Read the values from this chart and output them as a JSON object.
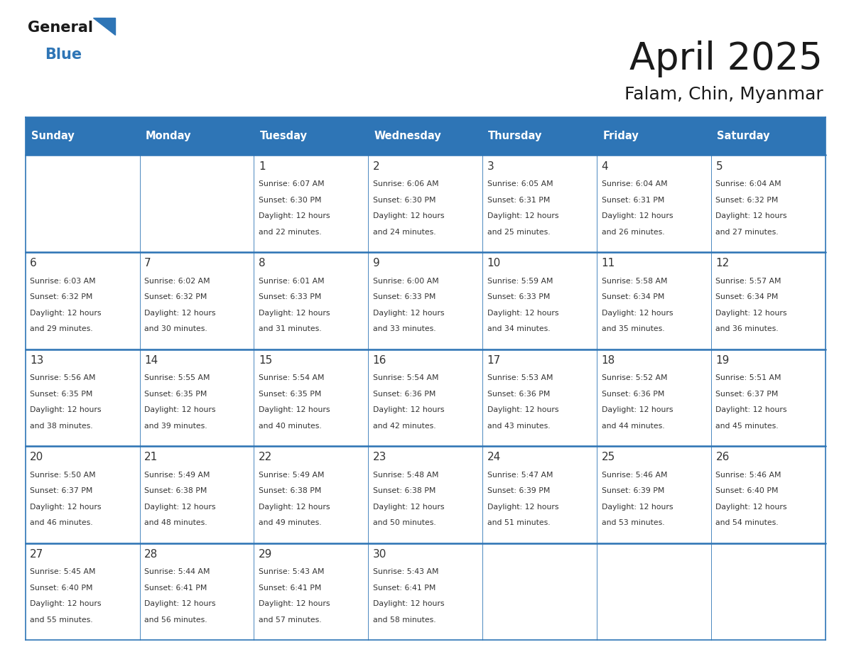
{
  "title": "April 2025",
  "subtitle": "Falam, Chin, Myanmar",
  "header_bg": "#2E75B6",
  "header_text_color": "#FFFFFF",
  "cell_bg": "#FFFFFF",
  "border_color": "#2E75B6",
  "text_color": "#333333",
  "days_of_week": [
    "Sunday",
    "Monday",
    "Tuesday",
    "Wednesday",
    "Thursday",
    "Friday",
    "Saturday"
  ],
  "weeks": [
    [
      {
        "day": "",
        "info": ""
      },
      {
        "day": "",
        "info": ""
      },
      {
        "day": "1",
        "info": "Sunrise: 6:07 AM\nSunset: 6:30 PM\nDaylight: 12 hours\nand 22 minutes."
      },
      {
        "day": "2",
        "info": "Sunrise: 6:06 AM\nSunset: 6:30 PM\nDaylight: 12 hours\nand 24 minutes."
      },
      {
        "day": "3",
        "info": "Sunrise: 6:05 AM\nSunset: 6:31 PM\nDaylight: 12 hours\nand 25 minutes."
      },
      {
        "day": "4",
        "info": "Sunrise: 6:04 AM\nSunset: 6:31 PM\nDaylight: 12 hours\nand 26 minutes."
      },
      {
        "day": "5",
        "info": "Sunrise: 6:04 AM\nSunset: 6:32 PM\nDaylight: 12 hours\nand 27 minutes."
      }
    ],
    [
      {
        "day": "6",
        "info": "Sunrise: 6:03 AM\nSunset: 6:32 PM\nDaylight: 12 hours\nand 29 minutes."
      },
      {
        "day": "7",
        "info": "Sunrise: 6:02 AM\nSunset: 6:32 PM\nDaylight: 12 hours\nand 30 minutes."
      },
      {
        "day": "8",
        "info": "Sunrise: 6:01 AM\nSunset: 6:33 PM\nDaylight: 12 hours\nand 31 minutes."
      },
      {
        "day": "9",
        "info": "Sunrise: 6:00 AM\nSunset: 6:33 PM\nDaylight: 12 hours\nand 33 minutes."
      },
      {
        "day": "10",
        "info": "Sunrise: 5:59 AM\nSunset: 6:33 PM\nDaylight: 12 hours\nand 34 minutes."
      },
      {
        "day": "11",
        "info": "Sunrise: 5:58 AM\nSunset: 6:34 PM\nDaylight: 12 hours\nand 35 minutes."
      },
      {
        "day": "12",
        "info": "Sunrise: 5:57 AM\nSunset: 6:34 PM\nDaylight: 12 hours\nand 36 minutes."
      }
    ],
    [
      {
        "day": "13",
        "info": "Sunrise: 5:56 AM\nSunset: 6:35 PM\nDaylight: 12 hours\nand 38 minutes."
      },
      {
        "day": "14",
        "info": "Sunrise: 5:55 AM\nSunset: 6:35 PM\nDaylight: 12 hours\nand 39 minutes."
      },
      {
        "day": "15",
        "info": "Sunrise: 5:54 AM\nSunset: 6:35 PM\nDaylight: 12 hours\nand 40 minutes."
      },
      {
        "day": "16",
        "info": "Sunrise: 5:54 AM\nSunset: 6:36 PM\nDaylight: 12 hours\nand 42 minutes."
      },
      {
        "day": "17",
        "info": "Sunrise: 5:53 AM\nSunset: 6:36 PM\nDaylight: 12 hours\nand 43 minutes."
      },
      {
        "day": "18",
        "info": "Sunrise: 5:52 AM\nSunset: 6:36 PM\nDaylight: 12 hours\nand 44 minutes."
      },
      {
        "day": "19",
        "info": "Sunrise: 5:51 AM\nSunset: 6:37 PM\nDaylight: 12 hours\nand 45 minutes."
      }
    ],
    [
      {
        "day": "20",
        "info": "Sunrise: 5:50 AM\nSunset: 6:37 PM\nDaylight: 12 hours\nand 46 minutes."
      },
      {
        "day": "21",
        "info": "Sunrise: 5:49 AM\nSunset: 6:38 PM\nDaylight: 12 hours\nand 48 minutes."
      },
      {
        "day": "22",
        "info": "Sunrise: 5:49 AM\nSunset: 6:38 PM\nDaylight: 12 hours\nand 49 minutes."
      },
      {
        "day": "23",
        "info": "Sunrise: 5:48 AM\nSunset: 6:38 PM\nDaylight: 12 hours\nand 50 minutes."
      },
      {
        "day": "24",
        "info": "Sunrise: 5:47 AM\nSunset: 6:39 PM\nDaylight: 12 hours\nand 51 minutes."
      },
      {
        "day": "25",
        "info": "Sunrise: 5:46 AM\nSunset: 6:39 PM\nDaylight: 12 hours\nand 53 minutes."
      },
      {
        "day": "26",
        "info": "Sunrise: 5:46 AM\nSunset: 6:40 PM\nDaylight: 12 hours\nand 54 minutes."
      }
    ],
    [
      {
        "day": "27",
        "info": "Sunrise: 5:45 AM\nSunset: 6:40 PM\nDaylight: 12 hours\nand 55 minutes."
      },
      {
        "day": "28",
        "info": "Sunrise: 5:44 AM\nSunset: 6:41 PM\nDaylight: 12 hours\nand 56 minutes."
      },
      {
        "day": "29",
        "info": "Sunrise: 5:43 AM\nSunset: 6:41 PM\nDaylight: 12 hours\nand 57 minutes."
      },
      {
        "day": "30",
        "info": "Sunrise: 5:43 AM\nSunset: 6:41 PM\nDaylight: 12 hours\nand 58 minutes."
      },
      {
        "day": "",
        "info": ""
      },
      {
        "day": "",
        "info": ""
      },
      {
        "day": "",
        "info": ""
      }
    ]
  ],
  "logo_blue_color": "#2E75B6",
  "logo_triangle_color": "#2E75B6",
  "bg_color": "#FFFFFF",
  "title_fontsize": 38,
  "subtitle_fontsize": 18,
  "header_fontsize": 10.5,
  "day_num_fontsize": 11,
  "info_fontsize": 7.8
}
